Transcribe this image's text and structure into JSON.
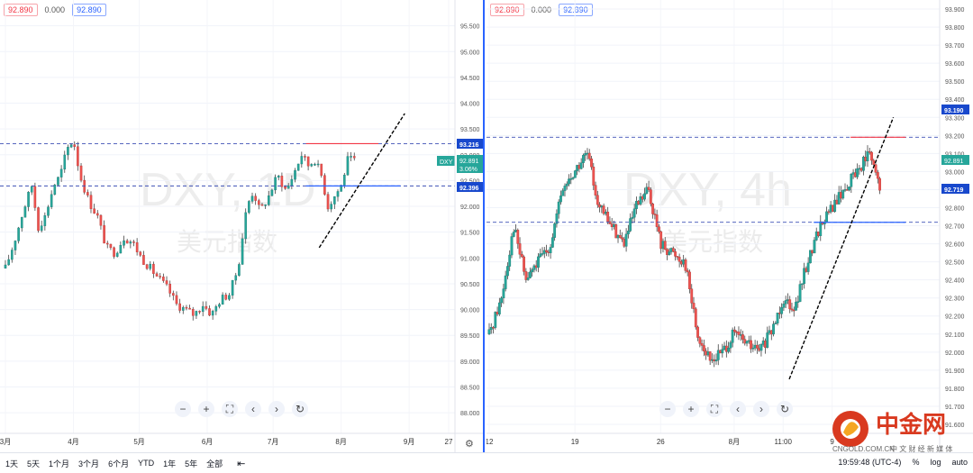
{
  "left_panel": {
    "ohlc": {
      "open": "92.890",
      "change": "0.000",
      "close": "92.890"
    },
    "symbol_watermark": "DXY, 1D",
    "name_watermark": "美元指数",
    "x_labels": [
      {
        "label": "3月",
        "day": 0
      },
      {
        "label": "4月",
        "day": 31
      },
      {
        "label": "5月",
        "day": 61
      },
      {
        "label": "6月",
        "day": 92
      },
      {
        "label": "7月",
        "day": 122
      },
      {
        "label": "8月",
        "day": 153
      },
      {
        "label": "9月",
        "day": 184
      },
      {
        "label": "27",
        "day": 202
      }
    ],
    "badges": {
      "dxy": "DXY",
      "dxy_price": "92.891",
      "dxy_pct": "3.06%",
      "upper": "93.216",
      "lower": "92.396"
    },
    "settings_icon": "gear-icon"
  },
  "right_panel": {
    "ohlc": {
      "open": "92.890",
      "change": "0.000",
      "close": "92.890"
    },
    "symbol_watermark": "DXY, 4h",
    "name_watermark": "美元指数",
    "x_labels": [
      {
        "label": "12",
        "day": 0
      },
      {
        "label": "19",
        "day": 7
      },
      {
        "label": "26",
        "day": 14
      },
      {
        "label": "8月",
        "day": 20
      },
      {
        "label": "11:00",
        "day": 24
      },
      {
        "label": "9",
        "day": 28
      }
    ],
    "badges": {
      "price": "92.891",
      "upper": "93.190",
      "lower": "92.719"
    }
  },
  "toolbar": {
    "zoom_out": "−",
    "zoom_in": "+",
    "fullscreen": "⛶",
    "prev": "‹",
    "next": "›",
    "reset": "↻"
  },
  "bottom_bar": {
    "ranges": [
      "1天",
      "5天",
      "1个月",
      "3个月",
      "6个月",
      "YTD",
      "1年",
      "5年",
      "全部"
    ],
    "time": "19:59:48 (UTC-4)",
    "percent": "%",
    "log": "log",
    "auto": "auto"
  },
  "logo": {
    "main": "中金网",
    "sub": "中 文 财 经 新 媒 体",
    "url": "CNGOLD.COM.CN"
  },
  "chart_data": [
    {
      "type": "candlestick",
      "title": "DXY, 1D",
      "ylim": [
        87.6,
        96.0
      ],
      "y_ticks": [
        88.0,
        88.5,
        89.0,
        89.5,
        90.0,
        90.5,
        91.0,
        91.5,
        92.0,
        92.5,
        93.0,
        93.5,
        94.0,
        94.5,
        95.0,
        95.5
      ],
      "close_path": [
        {
          "day": 0,
          "v": 90.8
        },
        {
          "day": 4,
          "v": 91.3
        },
        {
          "day": 8,
          "v": 91.9
        },
        {
          "day": 12,
          "v": 92.4
        },
        {
          "day": 15,
          "v": 91.6
        },
        {
          "day": 18,
          "v": 91.8
        },
        {
          "day": 22,
          "v": 92.4
        },
        {
          "day": 25,
          "v": 92.6
        },
        {
          "day": 28,
          "v": 93.1
        },
        {
          "day": 31,
          "v": 93.3
        },
        {
          "day": 34,
          "v": 92.6
        },
        {
          "day": 38,
          "v": 92.1
        },
        {
          "day": 42,
          "v": 91.8
        },
        {
          "day": 46,
          "v": 91.2
        },
        {
          "day": 50,
          "v": 91.1
        },
        {
          "day": 54,
          "v": 91.4
        },
        {
          "day": 58,
          "v": 91.3
        },
        {
          "day": 62,
          "v": 91.0
        },
        {
          "day": 66,
          "v": 90.8
        },
        {
          "day": 70,
          "v": 90.6
        },
        {
          "day": 74,
          "v": 90.4
        },
        {
          "day": 78,
          "v": 90.1
        },
        {
          "day": 82,
          "v": 90.0
        },
        {
          "day": 86,
          "v": 89.9
        },
        {
          "day": 90,
          "v": 90.1
        },
        {
          "day": 94,
          "v": 89.9
        },
        {
          "day": 98,
          "v": 90.2
        },
        {
          "day": 102,
          "v": 90.3
        },
        {
          "day": 106,
          "v": 90.8
        },
        {
          "day": 110,
          "v": 92.0
        },
        {
          "day": 113,
          "v": 92.3
        },
        {
          "day": 116,
          "v": 91.9
        },
        {
          "day": 120,
          "v": 92.2
        },
        {
          "day": 124,
          "v": 92.6
        },
        {
          "day": 128,
          "v": 92.3
        },
        {
          "day": 132,
          "v": 92.7
        },
        {
          "day": 135,
          "v": 93.0
        },
        {
          "day": 138,
          "v": 92.8
        },
        {
          "day": 141,
          "v": 92.9
        },
        {
          "day": 144,
          "v": 92.6
        },
        {
          "day": 147,
          "v": 92.0
        },
        {
          "day": 150,
          "v": 92.2
        },
        {
          "day": 153,
          "v": 92.4
        },
        {
          "day": 156,
          "v": 92.9
        },
        {
          "day": 159,
          "v": 92.89
        }
      ],
      "h_lines": [
        {
          "value": 93.216,
          "color": "#3f51b5"
        },
        {
          "value": 92.396,
          "color": "#3f51b5"
        }
      ],
      "resistance_segment": {
        "x": [
          137,
          170
        ],
        "y": [
          93.216,
          93.216
        ],
        "color": "#f23645"
      },
      "support_segment": {
        "x": [
          137,
          180
        ],
        "y": [
          92.396,
          92.396
        ],
        "color": "#2962ff"
      },
      "trendline": {
        "x": [
          143,
          182
        ],
        "y": [
          91.2,
          93.8
        ],
        "style": "dashed"
      }
    },
    {
      "type": "candlestick",
      "title": "DXY, 4h",
      "ylim": [
        91.55,
        93.95
      ],
      "y_ticks": [
        91.6,
        91.7,
        91.8,
        91.9,
        92.0,
        92.1,
        92.2,
        92.3,
        92.4,
        92.5,
        92.6,
        92.7,
        92.8,
        92.9,
        93.0,
        93.1,
        93.2,
        93.3,
        93.4,
        93.5,
        93.6,
        93.7,
        93.8,
        93.9
      ],
      "close_path": [
        {
          "day": 0,
          "v": 92.1
        },
        {
          "day": 1,
          "v": 92.3
        },
        {
          "day": 2,
          "v": 92.7
        },
        {
          "day": 3,
          "v": 92.4
        },
        {
          "day": 4,
          "v": 92.5
        },
        {
          "day": 5,
          "v": 92.6
        },
        {
          "day": 6,
          "v": 92.9
        },
        {
          "day": 7,
          "v": 93.0
        },
        {
          "day": 8,
          "v": 93.1
        },
        {
          "day": 9,
          "v": 92.8
        },
        {
          "day": 10,
          "v": 92.7
        },
        {
          "day": 11,
          "v": 92.6
        },
        {
          "day": 12,
          "v": 92.8
        },
        {
          "day": 13,
          "v": 92.9
        },
        {
          "day": 14,
          "v": 92.6
        },
        {
          "day": 15,
          "v": 92.55
        },
        {
          "day": 16,
          "v": 92.5
        },
        {
          "day": 17,
          "v": 92.1
        },
        {
          "day": 18,
          "v": 91.95
        },
        {
          "day": 19,
          "v": 92.0
        },
        {
          "day": 20,
          "v": 92.1
        },
        {
          "day": 21,
          "v": 92.05
        },
        {
          "day": 22,
          "v": 92.0
        },
        {
          "day": 23,
          "v": 92.1
        },
        {
          "day": 24,
          "v": 92.3
        },
        {
          "day": 25,
          "v": 92.25
        },
        {
          "day": 26,
          "v": 92.5
        },
        {
          "day": 27,
          "v": 92.7
        },
        {
          "day": 28,
          "v": 92.8
        },
        {
          "day": 29,
          "v": 92.9
        },
        {
          "day": 30,
          "v": 93.0
        },
        {
          "day": 31,
          "v": 93.1
        },
        {
          "day": 32,
          "v": 92.89
        }
      ],
      "h_lines": [
        {
          "value": 93.19,
          "color": "#3f51b5"
        },
        {
          "value": 92.719,
          "color": "#3f51b5"
        }
      ],
      "resistance_segment": {
        "x": [
          29.5,
          34
        ],
        "y": [
          93.19,
          93.19
        ],
        "color": "#f23645"
      },
      "support_segment": {
        "x": [
          26.5,
          34
        ],
        "y": [
          92.719,
          92.719
        ],
        "color": "#2962ff"
      },
      "trendline": {
        "x": [
          24.5,
          33
        ],
        "y": [
          91.85,
          93.3
        ],
        "style": "dashed"
      }
    }
  ]
}
